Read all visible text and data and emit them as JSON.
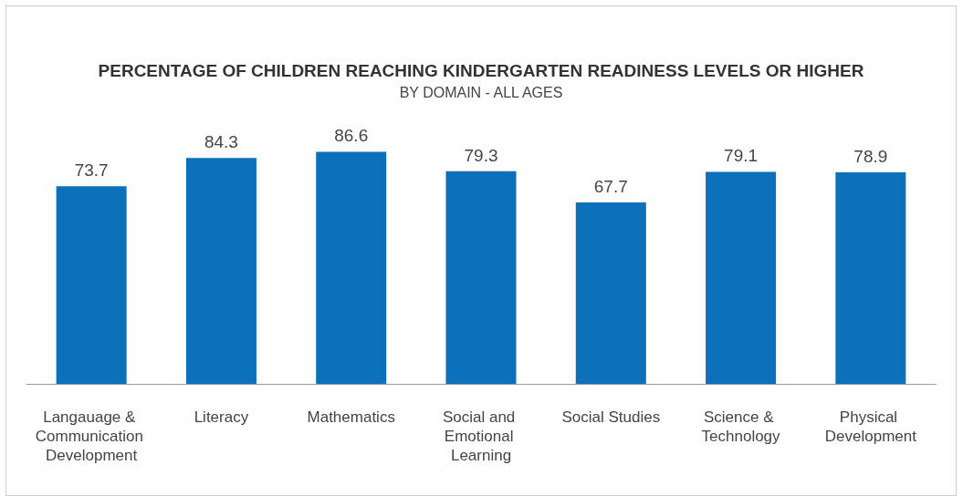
{
  "chart_data": {
    "type": "bar",
    "title": "PERCENTAGE OF CHILDREN REACHING KINDERGARTEN READINESS LEVELS OR HIGHER",
    "subtitle": "BY DOMAIN - ALL AGES",
    "categories": [
      "Langauage & Communication Development",
      "Literacy",
      "Mathematics",
      "Social and Emotional Learning",
      "Social Studies",
      "Science & Technology",
      "Physical Development"
    ],
    "values": [
      73.7,
      84.3,
      86.6,
      79.3,
      67.7,
      79.1,
      78.9
    ],
    "color": "#0c71ba",
    "data_labels": true
  }
}
